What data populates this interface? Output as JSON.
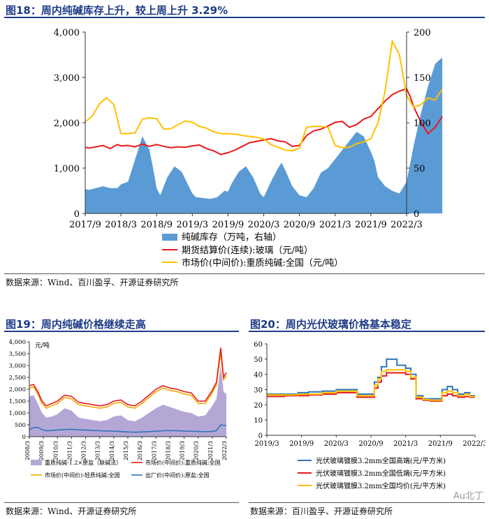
{
  "fig18": {
    "title": "图18：周内纯碱库存上升，较上周上升 3.29%",
    "source": "数据来源：Wind、百川盈孚、开源证券研究所"
  },
  "fig19": {
    "title": "图19：周内纯碱价格继续走高",
    "source": "数据来源：Wind、开源证券研究所"
  },
  "fig20": {
    "title": "图20：周内光伏玻璃价格基本稳定",
    "source": "数据来源：百川盈孚、开源证券研究所"
  },
  "watermark": "Au北丁",
  "colors": {
    "inventory": "#5b9bd5",
    "glass_future": "#e8191b",
    "soda_market": "#ffc000",
    "purple": "#b4a7d6",
    "light_soda": "#f2a900",
    "factory": "#2e75b6",
    "pv_high": "#2e75b6",
    "pv_low": "#e8191b",
    "pv_avg": "#ffc000"
  },
  "chart_data": [
    {
      "id": "fig18",
      "type": "area+line",
      "title": "周内纯碱库存上升，较上周上升 3.29%",
      "x_ticks": [
        "2017/9",
        "2018/3",
        "2018/9",
        "2019/3",
        "2019/9",
        "2020/3",
        "2020/9",
        "2021/3",
        "2021/9",
        "2022/3"
      ],
      "y_left": {
        "min": 0,
        "max": 4000,
        "ticks": [
          "0",
          "1,000",
          "2,000",
          "3,000",
          "4,000"
        ]
      },
      "y_right": {
        "min": 0,
        "max": 200,
        "ticks": [
          "0",
          "50",
          "100",
          "150",
          "200"
        ]
      },
      "legend": [
        "纯碱库存（万吨，右轴）",
        "期货结算价(连续):玻璃（元/吨）",
        "市场价(中间价):重质纯碱:全国（元/吨）"
      ],
      "series": [
        {
          "name": "纯碱库存（万吨，右轴）",
          "axis": "right",
          "kind": "area",
          "t": [
            0,
            0.1,
            0.3,
            0.5,
            0.7,
            0.9,
            1.0,
            1.2,
            1.4,
            1.6,
            1.8,
            1.9,
            2.0,
            2.1,
            2.3,
            2.5,
            2.7,
            2.9,
            3.0,
            3.1,
            3.3,
            3.5,
            3.7,
            3.9,
            4.0,
            4.1,
            4.3,
            4.5,
            4.7,
            4.9,
            5.0,
            5.2,
            5.4,
            5.5,
            5.6,
            5.8,
            6.0,
            6.2,
            6.4,
            6.6,
            6.8,
            7.0,
            7.2,
            7.4,
            7.6,
            7.8,
            8.0,
            8.1,
            8.2,
            8.4,
            8.6,
            8.8,
            9.0,
            9.1,
            9.2,
            9.4,
            9.6,
            9.8,
            10.0
          ],
          "v": [
            27,
            26,
            28,
            30,
            28,
            28,
            32,
            35,
            60,
            85,
            70,
            50,
            28,
            20,
            40,
            52,
            46,
            30,
            22,
            18,
            17,
            16,
            18,
            25,
            24,
            33,
            46,
            52,
            40,
            22,
            18,
            35,
            50,
            56,
            48,
            30,
            20,
            18,
            28,
            45,
            50,
            60,
            70,
            80,
            90,
            85,
            68,
            58,
            40,
            30,
            25,
            22,
            35,
            55,
            75,
            110,
            140,
            165,
            172
          ]
        },
        {
          "name": "期货结算价(连续):玻璃（元/吨）",
          "axis": "left",
          "kind": "line",
          "t": [
            0,
            0.1,
            0.3,
            0.5,
            0.7,
            0.9,
            1.0,
            1.2,
            1.4,
            1.6,
            1.8,
            2.0,
            2.2,
            2.4,
            2.6,
            2.8,
            3.0,
            3.2,
            3.4,
            3.6,
            3.8,
            4.0,
            4.2,
            4.4,
            4.6,
            4.8,
            5.0,
            5.2,
            5.4,
            5.6,
            5.8,
            6.0,
            6.2,
            6.4,
            6.6,
            6.8,
            7.0,
            7.2,
            7.4,
            7.6,
            7.8,
            8.0,
            8.2,
            8.4,
            8.6,
            8.8,
            9.0,
            9.1,
            9.2,
            9.4,
            9.6,
            9.8,
            10.0
          ],
          "v": [
            1460,
            1440,
            1470,
            1500,
            1430,
            1520,
            1490,
            1500,
            1470,
            1530,
            1480,
            1520,
            1480,
            1450,
            1470,
            1460,
            1490,
            1510,
            1430,
            1380,
            1300,
            1340,
            1400,
            1480,
            1560,
            1590,
            1620,
            1650,
            1600,
            1580,
            1480,
            1500,
            1720,
            1820,
            1860,
            1930,
            2010,
            2030,
            1900,
            1960,
            2080,
            2140,
            2310,
            2480,
            2620,
            2700,
            2750,
            2580,
            2350,
            2020,
            1760,
            1900,
            2140
          ]
        },
        {
          "name": "市场价(中间价):重质纯碱:全国（元/吨）",
          "axis": "left",
          "kind": "line",
          "t": [
            0,
            0.2,
            0.4,
            0.6,
            0.8,
            1.0,
            1.2,
            1.4,
            1.6,
            1.8,
            2.0,
            2.2,
            2.4,
            2.6,
            2.8,
            3.0,
            3.2,
            3.4,
            3.6,
            3.8,
            4.0,
            4.2,
            4.4,
            4.6,
            4.8,
            5.0,
            5.2,
            5.4,
            5.6,
            5.8,
            6.0,
            6.2,
            6.4,
            6.6,
            6.8,
            7.0,
            7.2,
            7.4,
            7.6,
            7.8,
            8.0,
            8.2,
            8.4,
            8.6,
            8.8,
            9.0,
            9.2,
            9.4,
            9.6,
            9.8,
            10.0
          ],
          "v": [
            2020,
            2150,
            2420,
            2550,
            2400,
            1760,
            1760,
            1780,
            2080,
            2110,
            2090,
            1860,
            1870,
            1960,
            2040,
            2010,
            1920,
            1880,
            1800,
            1760,
            1760,
            1750,
            1720,
            1700,
            1680,
            1640,
            1520,
            1460,
            1400,
            1380,
            1440,
            1900,
            1920,
            1920,
            1900,
            1500,
            1450,
            1460,
            1540,
            1580,
            1650,
            2000,
            2700,
            3800,
            3500,
            2600,
            2340,
            2400,
            2550,
            2500,
            2740
          ]
        }
      ]
    },
    {
      "id": "fig19",
      "type": "area+line",
      "title": "周内纯碱价格继续走高",
      "unit": "元/吨",
      "x_ticks": [
        "2008/3",
        "2009/3",
        "2010/3",
        "2011/3",
        "2012/3",
        "2013/3",
        "2014/3",
        "2015/3",
        "2016/3",
        "2017/3",
        "2018/3",
        "2019/3",
        "2020/3",
        "2021/3",
        "2022/3"
      ],
      "y": {
        "min": 0,
        "max": 4000,
        "ticks": [
          "0",
          "500",
          "1,000",
          "1,500",
          "2,000",
          "2,500",
          "3,000",
          "3,500",
          "4,000"
        ]
      },
      "legend": [
        "重质纯碱-1.2×原盐（联碱法）",
        "市场价(中间价):重质纯碱:全国",
        "市场价(中间价):轻质纯碱:全国",
        "出厂价(中间价):原盐:全国"
      ],
      "series": [
        {
          "name": "重质纯碱-1.2×原盐（联碱法）",
          "kind": "area",
          "t": [
            0,
            0.3,
            0.6,
            0.9,
            1.2,
            1.6,
            2.0,
            2.5,
            3.0,
            3.5,
            4.0,
            4.5,
            5.0,
            5.5,
            6.0,
            6.5,
            7.0,
            7.5,
            8.0,
            8.5,
            9.0,
            9.5,
            10.0,
            10.5,
            11.0,
            11.5,
            12.0,
            12.5,
            13.0,
            13.3,
            13.6,
            13.8,
            14.0
          ],
          "v": [
            1700,
            1750,
            1400,
            1000,
            800,
            850,
            950,
            1200,
            1100,
            800,
            750,
            700,
            650,
            700,
            850,
            900,
            700,
            650,
            800,
            1000,
            1200,
            1350,
            1250,
            1150,
            1050,
            1000,
            850,
            900,
            1300,
            1600,
            3000,
            1900,
            1800
          ]
        },
        {
          "name": "市场价(中间价):重质纯碱:全国",
          "kind": "line",
          "t": [
            0,
            0.3,
            0.6,
            0.9,
            1.2,
            1.6,
            2.0,
            2.5,
            3.0,
            3.5,
            4.0,
            4.5,
            5.0,
            5.5,
            6.0,
            6.5,
            7.0,
            7.5,
            8.0,
            8.5,
            9.0,
            9.5,
            10.0,
            10.5,
            11.0,
            11.5,
            12.0,
            12.5,
            13.0,
            13.3,
            13.6,
            13.8,
            14.0
          ],
          "v": [
            2150,
            2200,
            1900,
            1500,
            1300,
            1400,
            1500,
            1750,
            1700,
            1450,
            1400,
            1350,
            1300,
            1350,
            1500,
            1550,
            1350,
            1300,
            1500,
            1750,
            2000,
            2150,
            2050,
            2000,
            1900,
            1850,
            1500,
            1500,
            1950,
            2300,
            3750,
            2500,
            2700
          ]
        },
        {
          "name": "市场价(中间价):轻质纯碱:全国",
          "kind": "line",
          "t": [
            0,
            0.3,
            0.6,
            0.9,
            1.2,
            1.6,
            2.0,
            2.5,
            3.0,
            3.5,
            4.0,
            4.5,
            5.0,
            5.5,
            6.0,
            6.5,
            7.0,
            7.5,
            8.0,
            8.5,
            9.0,
            9.5,
            10.0,
            10.5,
            11.0,
            11.5,
            12.0,
            12.5,
            13.0,
            13.3,
            13.6,
            13.8,
            14.0
          ],
          "v": [
            2050,
            2100,
            1800,
            1400,
            1200,
            1300,
            1400,
            1650,
            1600,
            1350,
            1300,
            1250,
            1200,
            1250,
            1400,
            1450,
            1250,
            1200,
            1400,
            1650,
            1900,
            2050,
            1950,
            1900,
            1800,
            1750,
            1400,
            1400,
            1850,
            2200,
            3550,
            2400,
            2550
          ]
        },
        {
          "name": "出厂价(中间价):原盐:全国",
          "kind": "line",
          "t": [
            0,
            0.3,
            0.6,
            0.9,
            1.2,
            1.6,
            2.0,
            2.5,
            3.0,
            3.5,
            4.0,
            4.5,
            5.0,
            5.5,
            6.0,
            6.5,
            7.0,
            7.5,
            8.0,
            8.5,
            9.0,
            9.5,
            10.0,
            10.5,
            11.0,
            11.5,
            12.0,
            12.5,
            13.0,
            13.3,
            13.6,
            13.8,
            14.0
          ],
          "v": [
            300,
            380,
            400,
            300,
            250,
            260,
            280,
            300,
            310,
            290,
            280,
            260,
            250,
            240,
            230,
            220,
            200,
            190,
            200,
            210,
            230,
            250,
            260,
            250,
            240,
            230,
            220,
            210,
            220,
            260,
            500,
            480,
            470
          ]
        }
      ]
    },
    {
      "id": "fig20",
      "type": "line",
      "title": "周内光伏玻璃价格基本稳定",
      "x_ticks": [
        "2019/3",
        "2019/9",
        "2020/3",
        "2020/9",
        "2021/3",
        "2021/9",
        "2022/3"
      ],
      "y": {
        "min": 0,
        "max": 60,
        "ticks": [
          "0",
          "10",
          "20",
          "30",
          "40",
          "50",
          "60"
        ]
      },
      "legend": [
        "光伏玻璃镀膜3.2mm全国高端(元/平方米)",
        "光伏玻璃镀膜3.2mm全国低端(元/平方米)",
        "光伏玻璃镀膜3.2mm全国均价(元/平方米)"
      ],
      "series": [
        {
          "name": "光伏玻璃镀膜3.2mm全国高端(元/平方米)",
          "t": [
            0,
            0.5,
            0.9,
            1.2,
            1.6,
            2.0,
            2.2,
            2.4,
            2.6,
            2.9,
            3.0,
            3.1,
            3.2,
            3.3,
            3.45,
            3.6,
            3.75,
            3.9,
            4.0,
            4.15,
            4.3,
            4.5,
            4.7,
            4.9,
            5.05,
            5.2,
            5.35,
            5.5,
            5.7,
            5.85,
            6.0
          ],
          "v": [
            27,
            27,
            28,
            28.5,
            29,
            30,
            30,
            30,
            27,
            27,
            27,
            35,
            38,
            45,
            50,
            50,
            46,
            46,
            44,
            40,
            26,
            24,
            24,
            24,
            30,
            32,
            30,
            27,
            28,
            26,
            26
          ]
        },
        {
          "name": "光伏玻璃镀膜3.2mm全国低端(元/平方米)",
          "t": [
            0,
            0.5,
            0.9,
            1.2,
            1.6,
            2.0,
            2.2,
            2.4,
            2.6,
            2.9,
            3.0,
            3.1,
            3.2,
            3.3,
            3.45,
            3.6,
            3.75,
            3.9,
            4.0,
            4.15,
            4.3,
            4.5,
            4.7,
            4.9,
            5.05,
            5.2,
            5.35,
            5.5,
            5.7,
            5.85,
            6.0
          ],
          "v": [
            25.5,
            26,
            26,
            26.5,
            27,
            28,
            28,
            28,
            25,
            25,
            25,
            31,
            35,
            39,
            41,
            41,
            41,
            41,
            40,
            37,
            24,
            23,
            22.5,
            22.5,
            26,
            27,
            26,
            25,
            25.5,
            25,
            25
          ]
        },
        {
          "name": "光伏玻璃镀膜3.2mm全国均价(元/平方米)",
          "t": [
            0,
            0.5,
            0.9,
            1.2,
            1.6,
            2.0,
            2.2,
            2.4,
            2.6,
            2.9,
            3.0,
            3.1,
            3.2,
            3.3,
            3.45,
            3.6,
            3.75,
            3.9,
            4.0,
            4.15,
            4.3,
            4.5,
            4.7,
            4.9,
            5.05,
            5.2,
            5.35,
            5.5,
            5.7,
            5.85,
            6.0
          ],
          "v": [
            26.5,
            26.5,
            27,
            27,
            28,
            29,
            29,
            29,
            26,
            26,
            26,
            33,
            37,
            42,
            43,
            43,
            43,
            43,
            42,
            38,
            25,
            23.5,
            23,
            23,
            28,
            29,
            28,
            26,
            27,
            25.5,
            25.5
          ]
        }
      ]
    }
  ]
}
